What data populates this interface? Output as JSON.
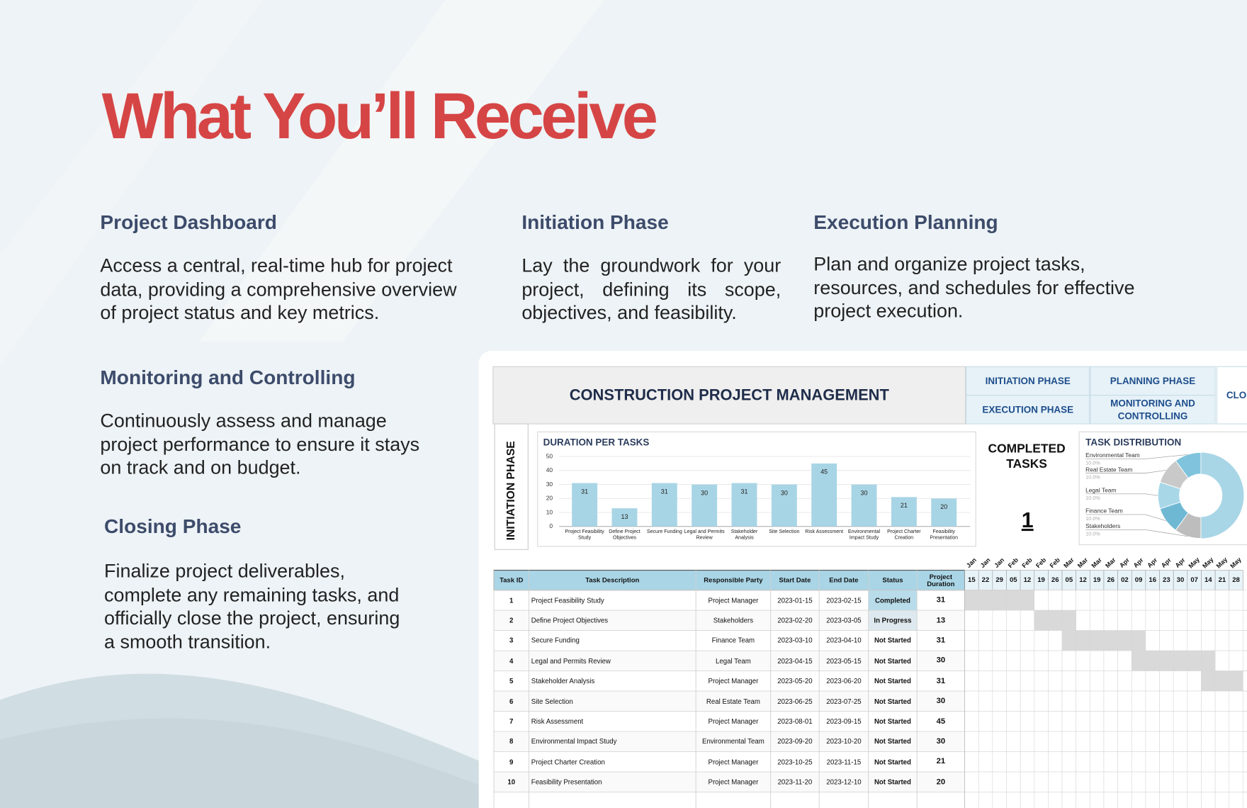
{
  "header": {
    "title": "What You’ll Receive"
  },
  "features": [
    {
      "title": "Project Dashboard",
      "lines": [
        "Access a central, real-time hub for project",
        "data, providing a comprehensive overview",
        "of project status and key metrics."
      ]
    },
    {
      "title": "Initiation Phase",
      "lines": [
        "Lay the groundwork for your",
        "project, defining its scope,",
        "objectives, and feasibility."
      ]
    },
    {
      "title": "Execution Planning",
      "lines": [
        "Plan and organize project tasks,",
        "resources, and schedules for effective",
        "project execution."
      ]
    },
    {
      "title": "Monitoring and Controlling",
      "lines": [
        "Continuously assess and manage",
        "project performance to ensure it stays",
        "on track and on budget."
      ]
    },
    {
      "title": "Closing Phase",
      "lines": [
        "Finalize project deliverables,",
        "complete any remaining tasks, and",
        "officially close the project, ensuring",
        "a smooth transition."
      ]
    }
  ],
  "dashboard": {
    "title": "CONSTRUCTION PROJECT MANAGEMENT",
    "tabs": [
      "INITIATION PHASE",
      "PLANNING PHASE",
      "CLO",
      "EXECUTION PHASE",
      "MONITORING AND CONTROLLING"
    ],
    "side_label": "INITIATION PHASE",
    "completed": {
      "label_lines": [
        "COMPLETED",
        "TASKS"
      ],
      "value": 1
    },
    "task_distribution": {
      "title": "TASK DISTRIBUTION",
      "items": [
        {
          "name": "Environmental Team",
          "value": 10,
          "label": "10.0%"
        },
        {
          "name": "Real Estate Team",
          "value": 10,
          "label": "10.0%"
        },
        {
          "name": "Legal Team",
          "value": 10,
          "label": "10.0%"
        },
        {
          "name": "Finance Team",
          "value": 10,
          "label": "10.0%"
        },
        {
          "name": "Stakeholders",
          "value": 10,
          "label": "10.0%"
        }
      ]
    },
    "table": {
      "headers": [
        "Task ID",
        "Task Description",
        "Responsible Party",
        "Start Date",
        "End Date",
        "Status",
        "Project Duration"
      ],
      "rows": [
        [
          1,
          "Project Feasibility Study",
          "Project Manager",
          "2023-01-15",
          "2023-02-15",
          "Completed",
          31
        ],
        [
          2,
          "Define Project Objectives",
          "Stakeholders",
          "2023-02-20",
          "2023-03-05",
          "In Progress",
          13
        ],
        [
          3,
          "Secure Funding",
          "Finance Team",
          "2023-03-10",
          "2023-04-10",
          "Not Started",
          31
        ],
        [
          4,
          "Legal and Permits Review",
          "Legal Team",
          "2023-04-15",
          "2023-05-15",
          "Not Started",
          30
        ],
        [
          5,
          "Stakeholder Analysis",
          "Project Manager",
          "2023-05-20",
          "2023-06-20",
          "Not Started",
          31
        ],
        [
          6,
          "Site Selection",
          "Real Estate Team",
          "2023-06-25",
          "2023-07-25",
          "Not Started",
          30
        ],
        [
          7,
          "Risk Assessment",
          "Project Manager",
          "2023-08-01",
          "2023-09-15",
          "Not Started",
          45
        ],
        [
          8,
          "Environmental Impact Study",
          "Environmental Team",
          "2023-09-20",
          "2023-10-20",
          "Not Started",
          30
        ],
        [
          9,
          "Project Charter Creation",
          "Project Manager",
          "2023-10-25",
          "2023-11-15",
          "Not Started",
          21
        ],
        [
          10,
          "Feasibility Presentation",
          "Project Manager",
          "2023-11-20",
          "2023-12-10",
          "Not Started",
          20
        ]
      ]
    },
    "gantt": {
      "months": [
        "Jan",
        "Jan",
        "Jan",
        "Feb",
        "Feb",
        "Feb",
        "Feb",
        "Mar",
        "Mar",
        "Mar",
        "Mar",
        "Apr",
        "Apr",
        "Apr",
        "Apr",
        "Apr",
        "May",
        "May",
        "May",
        "May"
      ],
      "days": [
        "15",
        "22",
        "29",
        "05",
        "12",
        "19",
        "26",
        "05",
        "12",
        "19",
        "26",
        "02",
        "09",
        "16",
        "23",
        "30",
        "07",
        "14",
        "21",
        "28"
      ]
    }
  },
  "chart_data": {
    "type": "bar",
    "title": "DURATION PER TASKS",
    "categories": [
      "Project Feasibility Study",
      "Define Project Objectives",
      "Secure Funding",
      "Legal and Permits Review",
      "Stakeholder Analysis",
      "Site Selection",
      "Risk Assessment",
      "Environmental Impact Study",
      "Project Charter Creation",
      "Feasibility Presentation"
    ],
    "values": [
      31,
      13,
      31,
      30,
      31,
      30,
      45,
      30,
      21,
      20
    ],
    "color": "#a8d5e5",
    "ylim": [
      0,
      50
    ],
    "yticks": [
      0,
      10,
      20,
      30,
      40,
      50
    ],
    "grid": true
  }
}
